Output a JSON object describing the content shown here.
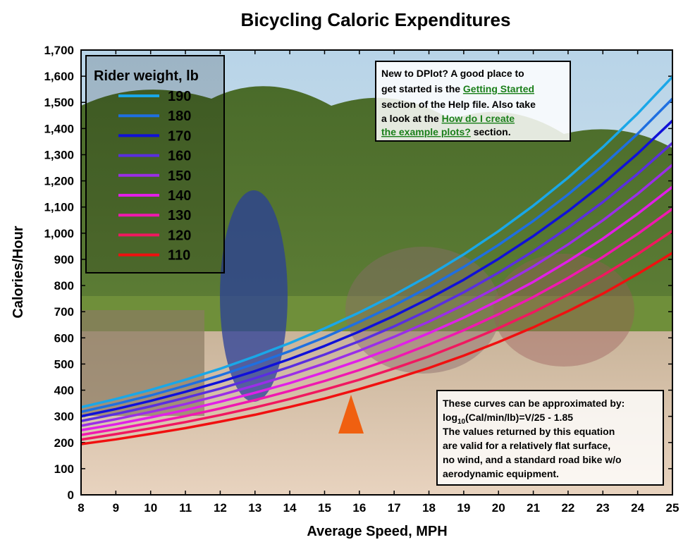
{
  "chart_data": {
    "type": "line",
    "title": "Bicycling Caloric Expenditures",
    "xlabel": "Average Speed, MPH",
    "ylabel": "Calories/Hour",
    "xlim": [
      8,
      25
    ],
    "ylim": [
      0,
      1700
    ],
    "x_ticks": [
      8,
      9,
      10,
      11,
      12,
      13,
      14,
      15,
      16,
      17,
      18,
      19,
      20,
      21,
      22,
      23,
      24,
      25
    ],
    "y_ticks": [
      0,
      100,
      200,
      300,
      400,
      500,
      600,
      700,
      800,
      900,
      1000,
      1100,
      1200,
      1300,
      1400,
      1500,
      1600,
      1700
    ],
    "y_tick_labels": [
      "0",
      "100",
      "200",
      "300",
      "400",
      "500",
      "600",
      "700",
      "800",
      "900",
      "1,000",
      "1,100",
      "1,200",
      "1,300",
      "1,400",
      "1,500",
      "1,600",
      "1,700"
    ],
    "x": [
      8,
      9,
      10,
      11,
      12,
      13,
      14,
      15,
      16,
      17,
      18,
      19,
      20,
      21,
      22,
      23,
      24,
      25
    ],
    "legend_title": "Rider weight, lb",
    "legend_position": "top-left",
    "grid": false,
    "background": "photo of cyclists on a road",
    "series": [
      {
        "name": "190",
        "color": "#1aa7e8",
        "values": [
          335,
          366,
          401,
          440,
          482,
          529,
          580,
          636,
          697,
          764,
          838,
          919,
          1008,
          1105,
          1212,
          1329,
          1457,
          1598
        ]
      },
      {
        "name": "180",
        "color": "#1f6fe0",
        "values": [
          317,
          347,
          380,
          417,
          457,
          501,
          549,
          602,
          661,
          724,
          794,
          871,
          955,
          1047,
          1148,
          1259,
          1380,
          1514
        ]
      },
      {
        "name": "170",
        "color": "#1010d8",
        "values": [
          300,
          328,
          359,
          394,
          432,
          473,
          519,
          569,
          624,
          684,
          750,
          822,
          902,
          989,
          1084,
          1189,
          1304,
          1430
        ]
      },
      {
        "name": "160",
        "color": "#5a2ee0",
        "values": [
          282,
          309,
          338,
          371,
          406,
          446,
          489,
          536,
          587,
          644,
          706,
          774,
          849,
          931,
          1021,
          1119,
          1227,
          1345
        ]
      },
      {
        "name": "150",
        "color": "#9a2ee8",
        "values": [
          264,
          289,
          317,
          347,
          381,
          418,
          458,
          502,
          551,
          604,
          662,
          726,
          796,
          873,
          957,
          1049,
          1150,
          1261
        ]
      },
      {
        "name": "140",
        "color": "#e020e8",
        "values": [
          247,
          270,
          296,
          324,
          356,
          390,
          427,
          469,
          514,
          563,
          618,
          677,
          743,
          814,
          893,
          979,
          1074,
          1177
        ]
      },
      {
        "name": "130",
        "color": "#f018b0",
        "values": [
          229,
          251,
          275,
          301,
          330,
          362,
          397,
          435,
          477,
          523,
          574,
          629,
          690,
          756,
          829,
          909,
          997,
          1093
        ]
      },
      {
        "name": "120",
        "color": "#f01860",
        "values": [
          211,
          232,
          254,
          278,
          305,
          334,
          366,
          402,
          440,
          483,
          529,
          581,
          637,
          698,
          765,
          839,
          920,
          1009
        ]
      },
      {
        "name": "110",
        "color": "#f01010",
        "values": [
          194,
          212,
          233,
          255,
          280,
          306,
          336,
          368,
          404,
          443,
          485,
          532,
          584,
          640,
          702,
          769,
          844,
          925
        ]
      }
    ]
  },
  "help_note": {
    "line1": "New to DPlot? A good place to",
    "line2_pre": "get started is the ",
    "line2_link": "Getting Started",
    "line3": "section of the Help file. Also take",
    "line4_pre": "a look at the ",
    "line4_link": "How do I create",
    "line5_link": "the example plots?",
    "line5_post": " section."
  },
  "equation_note": {
    "line1": "These curves can be approximated by:",
    "line2_pre": "log",
    "line2_sub": "10",
    "line2_post": "(Cal/min/lb)=V/25 - 1.85",
    "line3": "The values returned by this equation",
    "line4": "are valid for a relatively flat surface,",
    "line5": "no wind, and a standard road bike w/o",
    "line6": "aerodynamic equipment."
  }
}
